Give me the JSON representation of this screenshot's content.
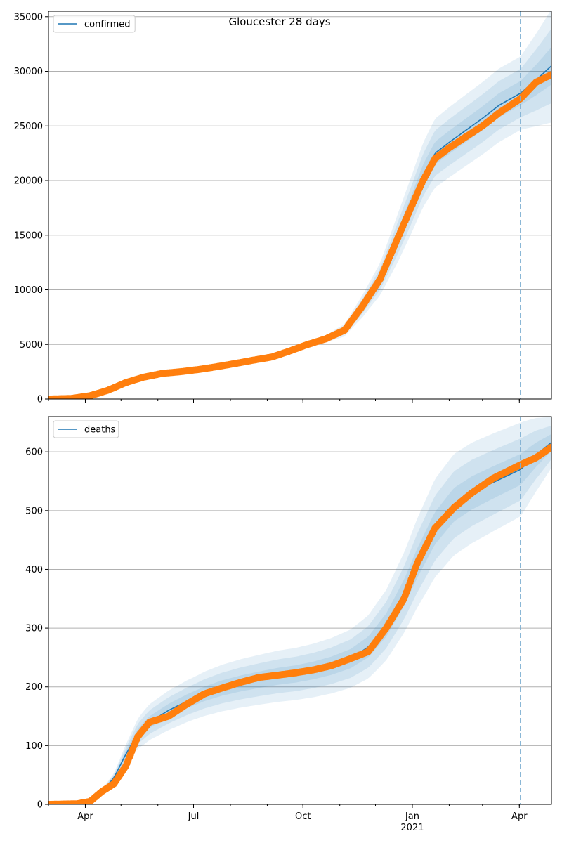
{
  "title": "Gloucester 28 days",
  "colors": {
    "model": "#1f77b4",
    "observed": "#ff7f0e",
    "band": "#1f77b4",
    "forecast_line": "#7fb0d3",
    "grid": "#b0b0b0"
  },
  "chart_data": [
    {
      "type": "line",
      "panel": "top",
      "title": "Gloucester 28 days",
      "legend": {
        "label": "confirmed",
        "placement": "upper-left"
      },
      "x_axis": {
        "type": "date",
        "range": [
          "2020-03-01",
          "2021-04-28"
        ],
        "ticks": [
          {
            "date": "2020-04-01",
            "label": "Apr"
          },
          {
            "date": "2020-07-01",
            "label": "Jul"
          },
          {
            "date": "2020-10-01",
            "label": "Oct"
          },
          {
            "date": "2021-01-01",
            "label": "Jan",
            "sublabel": ""
          },
          {
            "date": "2021-04-01",
            "label": "Apr"
          }
        ]
      },
      "y_axis": {
        "range": [
          0,
          35500
        ],
        "ticks": [
          {
            "value": 0,
            "label": "0"
          },
          {
            "value": 5000,
            "label": "5000"
          },
          {
            "value": 10000,
            "label": "10000"
          },
          {
            "value": 15000,
            "label": "15000"
          },
          {
            "value": 20000,
            "label": "20000"
          },
          {
            "value": 25000,
            "label": "25000"
          },
          {
            "value": 30000,
            "label": "30000"
          },
          {
            "value": 35000,
            "label": "35000"
          }
        ]
      },
      "grid": "horizontal",
      "forecast_start": "2021-04-02",
      "model_curve": [
        [
          "2020-03-01",
          0
        ],
        [
          "2020-03-20",
          60
        ],
        [
          "2020-04-05",
          300
        ],
        [
          "2020-04-20",
          800
        ],
        [
          "2020-05-05",
          1500
        ],
        [
          "2020-05-20",
          2000
        ],
        [
          "2020-06-05",
          2350
        ],
        [
          "2020-06-20",
          2500
        ],
        [
          "2020-07-05",
          2700
        ],
        [
          "2020-07-20",
          2950
        ],
        [
          "2020-08-05",
          3250
        ],
        [
          "2020-08-20",
          3550
        ],
        [
          "2020-09-05",
          3900
        ],
        [
          "2020-09-20",
          4450
        ],
        [
          "2020-10-05",
          5000
        ],
        [
          "2020-10-20",
          5500
        ],
        [
          "2020-11-05",
          6300
        ],
        [
          "2020-11-20",
          8500
        ],
        [
          "2020-12-05",
          11000
        ],
        [
          "2020-12-20",
          14800
        ],
        [
          "2021-01-01",
          18000
        ],
        [
          "2021-01-10",
          20500
        ],
        [
          "2021-01-20",
          22500
        ],
        [
          "2021-02-01",
          23500
        ],
        [
          "2021-02-15",
          24600
        ],
        [
          "2021-03-01",
          25700
        ],
        [
          "2021-03-15",
          26900
        ],
        [
          "2021-04-02",
          28000
        ],
        [
          "2021-04-15",
          29200
        ],
        [
          "2021-04-28",
          30500
        ]
      ],
      "band_width_frac": [
        [
          "2020-03-01",
          0.0
        ],
        [
          "2020-10-15",
          0.05
        ],
        [
          "2020-11-20",
          0.12
        ],
        [
          "2020-12-20",
          0.15
        ],
        [
          "2021-01-20",
          0.14
        ],
        [
          "2021-04-02",
          0.12
        ],
        [
          "2021-04-28",
          0.17
        ]
      ],
      "observed": [
        [
          "2020-03-01",
          0
        ],
        [
          "2020-03-20",
          50
        ],
        [
          "2020-04-05",
          300
        ],
        [
          "2020-04-20",
          800
        ],
        [
          "2020-05-05",
          1500
        ],
        [
          "2020-05-20",
          2000
        ],
        [
          "2020-06-05",
          2350
        ],
        [
          "2020-06-20",
          2500
        ],
        [
          "2020-07-05",
          2700
        ],
        [
          "2020-07-20",
          2950
        ],
        [
          "2020-08-05",
          3250
        ],
        [
          "2020-08-20",
          3550
        ],
        [
          "2020-09-05",
          3850
        ],
        [
          "2020-09-20",
          4400
        ],
        [
          "2020-10-05",
          5000
        ],
        [
          "2020-10-20",
          5500
        ],
        [
          "2020-11-05",
          6300
        ],
        [
          "2020-11-20",
          8500
        ],
        [
          "2020-12-05",
          11000
        ],
        [
          "2020-12-20",
          14800
        ],
        [
          "2021-01-01",
          17800
        ],
        [
          "2021-01-10",
          20000
        ],
        [
          "2021-01-20",
          22000
        ],
        [
          "2021-02-01",
          23000
        ],
        [
          "2021-02-15",
          24000
        ],
        [
          "2021-03-01",
          25000
        ],
        [
          "2021-03-15",
          26200
        ],
        [
          "2021-04-02",
          27500
        ],
        [
          "2021-04-15",
          29000
        ],
        [
          "2021-04-28",
          29700
        ]
      ]
    },
    {
      "type": "line",
      "panel": "bottom",
      "legend": {
        "label": "deaths",
        "placement": "upper-left"
      },
      "x_axis": {
        "type": "date",
        "range": [
          "2020-03-01",
          "2021-04-28"
        ],
        "ticks": [
          {
            "date": "2020-04-01",
            "label": "Apr"
          },
          {
            "date": "2020-07-01",
            "label": "Jul"
          },
          {
            "date": "2020-10-01",
            "label": "Oct"
          },
          {
            "date": "2021-01-01",
            "label": "Jan",
            "sublabel": "2021"
          },
          {
            "date": "2021-04-01",
            "label": "Apr"
          }
        ]
      },
      "y_axis": {
        "range": [
          0,
          660
        ],
        "ticks": [
          {
            "value": 0,
            "label": "0"
          },
          {
            "value": 100,
            "label": "100"
          },
          {
            "value": 200,
            "label": "200"
          },
          {
            "value": 300,
            "label": "300"
          },
          {
            "value": 400,
            "label": "400"
          },
          {
            "value": 500,
            "label": "500"
          },
          {
            "value": 600,
            "label": "600"
          }
        ]
      },
      "grid": "horizontal",
      "forecast_start": "2021-04-02",
      "model_curve": [
        [
          "2020-03-01",
          0
        ],
        [
          "2020-03-25",
          1
        ],
        [
          "2020-04-05",
          5
        ],
        [
          "2020-04-15",
          22
        ],
        [
          "2020-04-25",
          45
        ],
        [
          "2020-05-05",
          85
        ],
        [
          "2020-05-15",
          120
        ],
        [
          "2020-05-25",
          140
        ],
        [
          "2020-06-10",
          160
        ],
        [
          "2020-06-25",
          175
        ],
        [
          "2020-07-10",
          188
        ],
        [
          "2020-07-25",
          198
        ],
        [
          "2020-08-10",
          206
        ],
        [
          "2020-08-25",
          212
        ],
        [
          "2020-09-10",
          218
        ],
        [
          "2020-09-25",
          222
        ],
        [
          "2020-10-10",
          228
        ],
        [
          "2020-10-25",
          236
        ],
        [
          "2020-11-10",
          248
        ],
        [
          "2020-11-25",
          268
        ],
        [
          "2020-12-10",
          305
        ],
        [
          "2020-12-25",
          360
        ],
        [
          "2021-01-05",
          410
        ],
        [
          "2021-01-20",
          470
        ],
        [
          "2021-02-05",
          510
        ],
        [
          "2021-02-20",
          530
        ],
        [
          "2021-03-10",
          548
        ],
        [
          "2021-04-02",
          570
        ],
        [
          "2021-04-15",
          595
        ],
        [
          "2021-04-28",
          616
        ]
      ],
      "band_width_frac": [
        [
          "2020-03-01",
          0.0
        ],
        [
          "2020-04-10",
          0.15
        ],
        [
          "2020-05-20",
          0.22
        ],
        [
          "2020-07-01",
          0.2
        ],
        [
          "2020-10-01",
          0.2
        ],
        [
          "2020-12-01",
          0.2
        ],
        [
          "2021-01-15",
          0.18
        ],
        [
          "2021-04-02",
          0.14
        ],
        [
          "2021-04-28",
          0.07
        ]
      ],
      "observed": [
        [
          "2020-03-01",
          0
        ],
        [
          "2020-03-25",
          1
        ],
        [
          "2020-04-05",
          5
        ],
        [
          "2020-04-15",
          22
        ],
        [
          "2020-04-25",
          35
        ],
        [
          "2020-05-05",
          65
        ],
        [
          "2020-05-15",
          115
        ],
        [
          "2020-05-25",
          140
        ],
        [
          "2020-06-10",
          150
        ],
        [
          "2020-06-25",
          170
        ],
        [
          "2020-07-10",
          188
        ],
        [
          "2020-07-25",
          198
        ],
        [
          "2020-08-10",
          208
        ],
        [
          "2020-08-25",
          216
        ],
        [
          "2020-09-10",
          220
        ],
        [
          "2020-09-25",
          224
        ],
        [
          "2020-10-10",
          229
        ],
        [
          "2020-10-25",
          236
        ],
        [
          "2020-11-10",
          248
        ],
        [
          "2020-11-25",
          260
        ],
        [
          "2020-12-10",
          300
        ],
        [
          "2020-12-25",
          350
        ],
        [
          "2021-01-05",
          410
        ],
        [
          "2021-01-20",
          470
        ],
        [
          "2021-02-05",
          505
        ],
        [
          "2021-02-20",
          530
        ],
        [
          "2021-03-10",
          555
        ],
        [
          "2021-04-02",
          578
        ],
        [
          "2021-04-15",
          590
        ],
        [
          "2021-04-28",
          608
        ]
      ]
    }
  ]
}
